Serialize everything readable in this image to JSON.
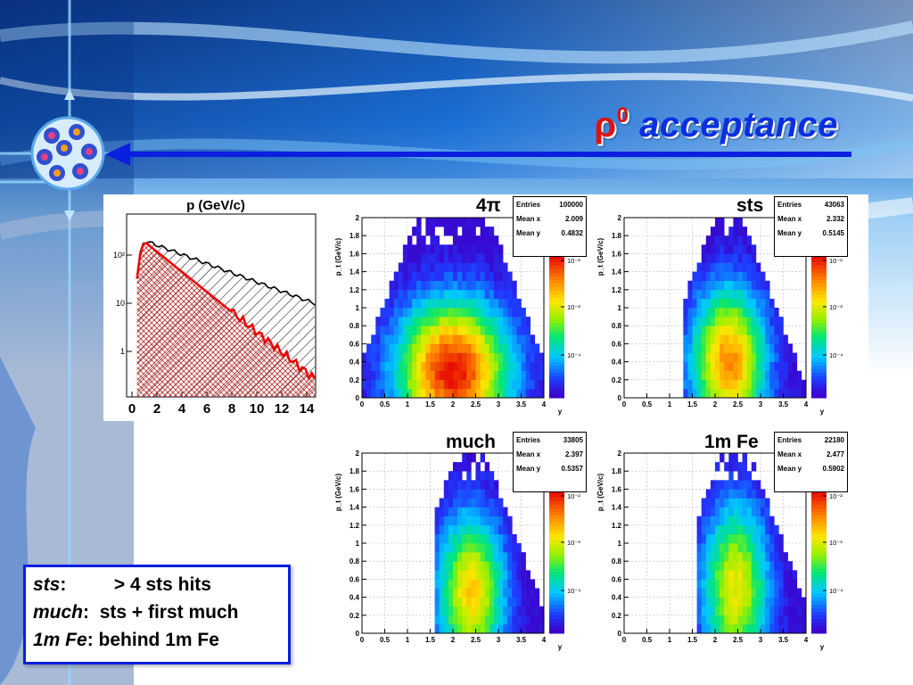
{
  "slide": {
    "title_rho": "ρ",
    "title_sup": "0",
    "title_text": "acceptance"
  },
  "momentum_hist": {
    "title": "p (GeV/c)",
    "x_ticks": [
      "0",
      "2",
      "4",
      "6",
      "8",
      "10",
      "12",
      "14"
    ],
    "y_ticks": [
      "10²",
      "10",
      "1"
    ]
  },
  "panels": [
    {
      "label": "4π",
      "entries": "100000",
      "mean_x": "2.009",
      "mean_y": "0.4832"
    },
    {
      "label": "sts",
      "entries": "43063",
      "mean_x": "2.332",
      "mean_y": "0.5145"
    },
    {
      "label": "much",
      "entries": "33805",
      "mean_x": "2.397",
      "mean_y": "0.5357"
    },
    {
      "label": "1m Fe",
      "entries": "22180",
      "mean_x": "2.477",
      "mean_y": "0.5902"
    }
  ],
  "stat_labels": {
    "entries": "Entries",
    "mean_x": "Mean x",
    "mean_y": "Mean y"
  },
  "axes": {
    "x_label": "y",
    "y_label": "p_t (GeV/c)",
    "x_ticks": [
      "0",
      "0.5",
      "1",
      "1.5",
      "2",
      "2.5",
      "3",
      "3.5",
      "4"
    ],
    "y_ticks": [
      "0",
      "0.2",
      "0.4",
      "0.6",
      "0.8",
      "1",
      "1.2",
      "1.4",
      "1.6",
      "1.8",
      "2"
    ],
    "z_ticks": [
      "10⁻²",
      "10⁻³",
      "10⁻⁴"
    ]
  },
  "legend": [
    {
      "key": "sts",
      "sep": ":",
      "value": "> 4 sts hits"
    },
    {
      "key": "much",
      "sep": ":",
      "value": "sts + first much"
    },
    {
      "key": "1m Fe",
      "sep": ":",
      "value": "behind 1m Fe"
    }
  ],
  "colors": {
    "title_blue": "#0b2fe0",
    "title_red": "#e01010",
    "accent_blue": "#0a1fe0"
  }
}
